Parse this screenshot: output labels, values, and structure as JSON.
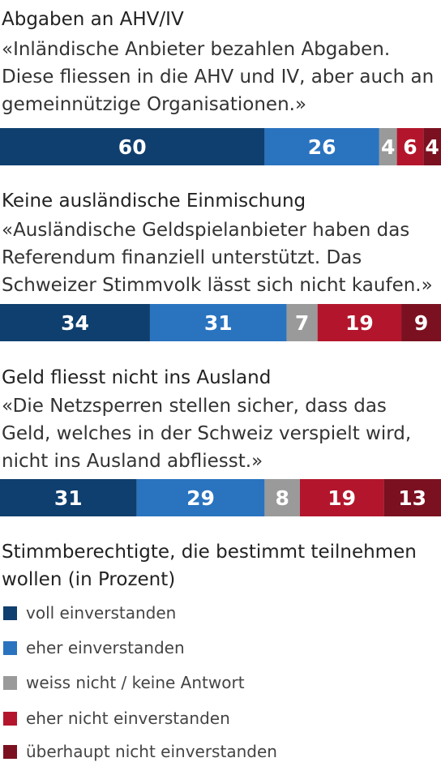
{
  "colors": {
    "voll_einverstanden": "#0f3f6e",
    "eher_einverstanden": "#2a73bf",
    "weiss_nicht": "#9a9a9a",
    "eher_nicht": "#b3162c",
    "ueberhaupt_nicht": "#7b1120"
  },
  "chart_data": {
    "type": "bar",
    "orientation": "horizontal-stacked",
    "unit": "Prozent",
    "categories": [
      "Abgaben an AHV/IV",
      "Keine ausländische Einmischung",
      "Geld fliesst nicht ins Ausland"
    ],
    "statements": [
      {
        "title": "Abgaben an AHV/IV",
        "quote_lines": [
          "«Inländische Anbieter bezahlen Abgaben.",
          "Diese fliessen in die AHV und IV, aber auch an",
          "gemeinnützige Organisationen.»"
        ],
        "values": [
          60,
          26,
          4,
          6,
          4
        ]
      },
      {
        "title": "Keine ausländische Einmischung",
        "quote_lines": [
          "«Ausländische Geldspielanbieter haben das",
          "Referendum finanziell unterstützt. Das",
          "Schweizer Stimmvolk lässt sich nicht kaufen.»"
        ],
        "values": [
          34,
          31,
          7,
          19,
          9
        ]
      },
      {
        "title": "Geld fliesst nicht ins Ausland",
        "quote_lines": [
          "«Die Netzsperren stellen sicher, dass das",
          "Geld, welches in der Schweiz verspielt wird,",
          "nicht ins Ausland abfliesst.»"
        ],
        "values": [
          31,
          29,
          8,
          19,
          13
        ]
      }
    ],
    "series": [
      {
        "name": "voll einverstanden",
        "values": [
          60,
          34,
          31
        ],
        "color": "#0f3f6e"
      },
      {
        "name": "eher einverstanden",
        "values": [
          26,
          31,
          29
        ],
        "color": "#2a73bf"
      },
      {
        "name": "weiss nicht / keine Antwort",
        "values": [
          4,
          7,
          8
        ],
        "color": "#9a9a9a"
      },
      {
        "name": "eher nicht einverstanden",
        "values": [
          6,
          19,
          19
        ],
        "color": "#b3162c"
      },
      {
        "name": "überhaupt nicht einverstanden",
        "values": [
          4,
          9,
          13
        ],
        "color": "#7b1120"
      }
    ],
    "caption": "Stimmberechtigte, die bestimmt teilnehmen wollen (in Prozent)",
    "legend_position": "bottom",
    "grid": false
  }
}
